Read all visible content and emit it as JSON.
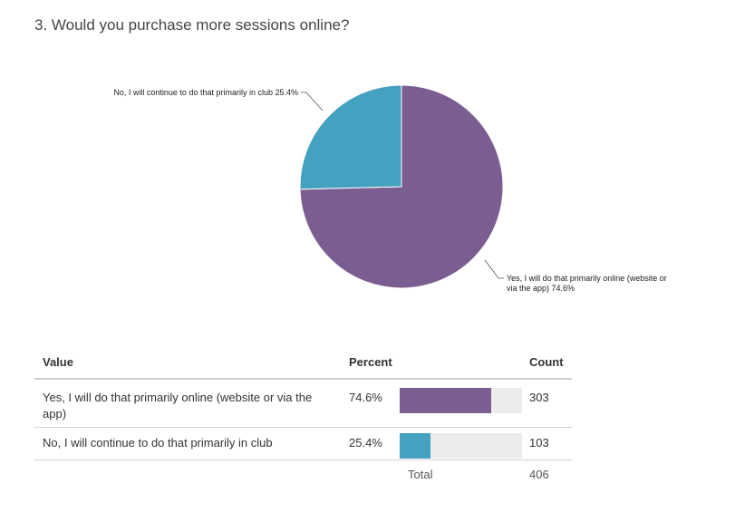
{
  "question": "3. Would you purchase more sessions online?",
  "table": {
    "headers": {
      "value": "Value",
      "percent": "Percent",
      "count": "Count"
    },
    "total_label": "Total",
    "total_value": "406"
  },
  "chart_data": {
    "type": "pie",
    "slices": [
      {
        "label": "Yes, I will do that primarily online (website or via the app)",
        "chart_label_lines": [
          "Yes, I will do that primarily online (website or",
          "via the app) 74.6%"
        ],
        "percent": 74.6,
        "percent_text": "74.6%",
        "count": 303,
        "count_text": "303",
        "color": "#7b5e91"
      },
      {
        "label": "No, I will continue to do that primarily in club",
        "chart_label_lines": [
          "No, I will continue to do that primarily in club 25.4%"
        ],
        "percent": 25.4,
        "percent_text": "25.4%",
        "count": 103,
        "count_text": "103",
        "color": "#44a1c0"
      }
    ],
    "total": 406
  }
}
